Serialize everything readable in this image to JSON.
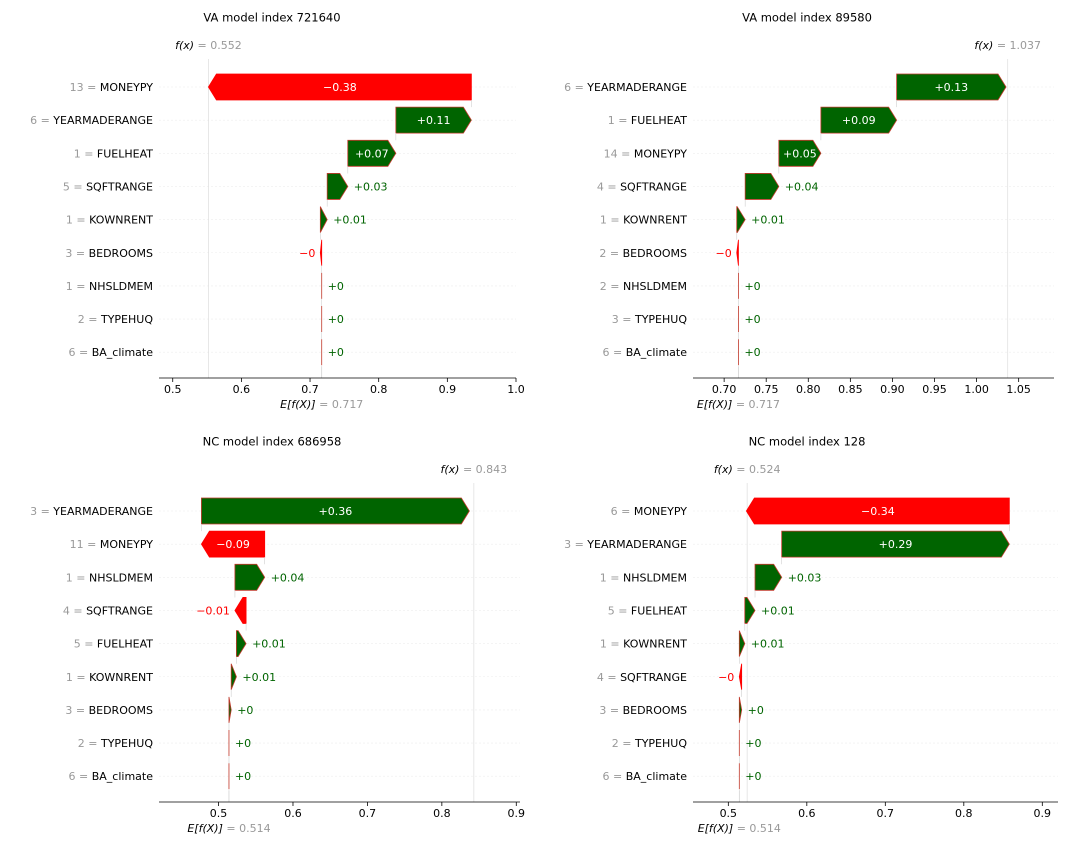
{
  "colors": {
    "positive": "#006400",
    "negative": "#ff0000",
    "edge": "#d62728",
    "grey": "#999999",
    "text": "#000000"
  },
  "chart_data": [
    {
      "type": "waterfall",
      "title": "VA model index 721640",
      "fx_label": "f(x)",
      "fx_value": "= 0.552",
      "fx": 0.552,
      "ex_label": "E[f(X)]",
      "ex_value": "= 0.717",
      "ex": 0.717,
      "xlim": [
        0.48,
        1.0
      ],
      "xticks": [
        0.5,
        0.6,
        0.7,
        0.8,
        0.9,
        1.0
      ],
      "xtick_labels": [
        "0.5",
        "0.6",
        "0.7",
        "0.8",
        "0.9",
        "1.0"
      ],
      "features": [
        {
          "value": "13",
          "name": "MONEYPY",
          "shap": -0.383,
          "label": "−0.38"
        },
        {
          "value": "6",
          "name": "YEARMADERANGE",
          "shap": 0.11,
          "label": "+0.11"
        },
        {
          "value": "1",
          "name": "FUELHEAT",
          "shap": 0.07,
          "label": "+0.07"
        },
        {
          "value": "5",
          "name": "SQFTRANGE",
          "shap": 0.03,
          "label": "+0.03"
        },
        {
          "value": "1",
          "name": "KOWNRENT",
          "shap": 0.01,
          "label": "+0.01"
        },
        {
          "value": "3",
          "name": "BEDROOMS",
          "shap": -0.002,
          "label": "−0"
        },
        {
          "value": "1",
          "name": "NHSLDMEM",
          "shap": 0.0,
          "label": "+0"
        },
        {
          "value": "2",
          "name": "TYPEHUQ",
          "shap": 0.0,
          "label": "+0"
        },
        {
          "value": "6",
          "name": "BA_climate",
          "shap": 0.0,
          "label": "+0"
        }
      ]
    },
    {
      "type": "waterfall",
      "title": "VA model index 89580",
      "fx_label": "f(x)",
      "fx_value": "= 1.037",
      "fx": 1.037,
      "ex_label": "E[f(X)]",
      "ex_value": "= 0.717",
      "ex": 0.717,
      "xlim": [
        0.663,
        1.092
      ],
      "xticks": [
        0.7,
        0.75,
        0.8,
        0.85,
        0.9,
        0.95,
        1.0,
        1.05
      ],
      "xtick_labels": [
        "0.70",
        "0.75",
        "0.80",
        "0.85",
        "0.90",
        "0.95",
        "1.00",
        "1.05"
      ],
      "features": [
        {
          "value": "6",
          "name": "YEARMADERANGE",
          "shap": 0.13,
          "label": "+0.13"
        },
        {
          "value": "1",
          "name": "FUELHEAT",
          "shap": 0.09,
          "label": "+0.09"
        },
        {
          "value": "14",
          "name": "MONEYPY",
          "shap": 0.05,
          "label": "+0.05"
        },
        {
          "value": "4",
          "name": "SQFTRANGE",
          "shap": 0.04,
          "label": "+0.04"
        },
        {
          "value": "1",
          "name": "KOWNRENT",
          "shap": 0.01,
          "label": "+0.01"
        },
        {
          "value": "2",
          "name": "BEDROOMS",
          "shap": -0.002,
          "label": "−0"
        },
        {
          "value": "2",
          "name": "NHSLDMEM",
          "shap": 0.0,
          "label": "+0"
        },
        {
          "value": "3",
          "name": "TYPEHUQ",
          "shap": 0.0,
          "label": "+0"
        },
        {
          "value": "6",
          "name": "BA_climate",
          "shap": 0.0,
          "label": "+0"
        }
      ]
    },
    {
      "type": "waterfall",
      "title": "NC model index 686958",
      "fx_label": "f(x)",
      "fx_value": "= 0.843",
      "fx": 0.843,
      "ex_label": "E[f(X)]",
      "ex_value": "= 0.514",
      "ex": 0.514,
      "xlim": [
        0.42,
        0.905
      ],
      "xticks": [
        0.5,
        0.6,
        0.7,
        0.8,
        0.9
      ],
      "xtick_labels": [
        "0.5",
        "0.6",
        "0.7",
        "0.8",
        "0.9"
      ],
      "features": [
        {
          "value": "3",
          "name": "YEARMADERANGE",
          "shap": 0.36,
          "label": "+0.36"
        },
        {
          "value": "11",
          "name": "MONEYPY",
          "shap": -0.085,
          "label": "−0.09"
        },
        {
          "value": "1",
          "name": "NHSLDMEM",
          "shap": 0.04,
          "label": "+0.04"
        },
        {
          "value": "4",
          "name": "SQFTRANGE",
          "shap": -0.015,
          "label": "−0.01"
        },
        {
          "value": "5",
          "name": "FUELHEAT",
          "shap": 0.013,
          "label": "+0.01"
        },
        {
          "value": "1",
          "name": "KOWNRENT",
          "shap": 0.007,
          "label": "+0.01"
        },
        {
          "value": "3",
          "name": "BEDROOMS",
          "shap": 0.003,
          "label": "+0"
        },
        {
          "value": "2",
          "name": "TYPEHUQ",
          "shap": 0.0,
          "label": "+0"
        },
        {
          "value": "6",
          "name": "BA_climate",
          "shap": 0.0,
          "label": "+0"
        }
      ]
    },
    {
      "type": "waterfall",
      "title": "NC model index 128",
      "fx_label": "f(x)",
      "fx_value": "= 0.524",
      "fx": 0.524,
      "ex_label": "E[f(X)]",
      "ex_value": "= 0.514",
      "ex": 0.514,
      "xlim": [
        0.455,
        0.92
      ],
      "xticks": [
        0.5,
        0.6,
        0.7,
        0.8,
        0.9
      ],
      "xtick_labels": [
        "0.5",
        "0.6",
        "0.7",
        "0.8",
        "0.9"
      ],
      "features": [
        {
          "value": "6",
          "name": "MONEYPY",
          "shap": -0.335,
          "label": "−0.34"
        },
        {
          "value": "3",
          "name": "YEARMADERANGE",
          "shap": 0.29,
          "label": "+0.29"
        },
        {
          "value": "1",
          "name": "NHSLDMEM",
          "shap": 0.034,
          "label": "+0.03"
        },
        {
          "value": "5",
          "name": "FUELHEAT",
          "shap": 0.013,
          "label": "+0.01"
        },
        {
          "value": "1",
          "name": "KOWNRENT",
          "shap": 0.007,
          "label": "+0.01"
        },
        {
          "value": "4",
          "name": "SQFTRANGE",
          "shap": -0.003,
          "label": "−0"
        },
        {
          "value": "3",
          "name": "BEDROOMS",
          "shap": 0.003,
          "label": "+0"
        },
        {
          "value": "2",
          "name": "TYPEHUQ",
          "shap": 0.0,
          "label": "+0"
        },
        {
          "value": "6",
          "name": "BA_climate",
          "shap": 0.0,
          "label": "+0"
        }
      ]
    }
  ]
}
